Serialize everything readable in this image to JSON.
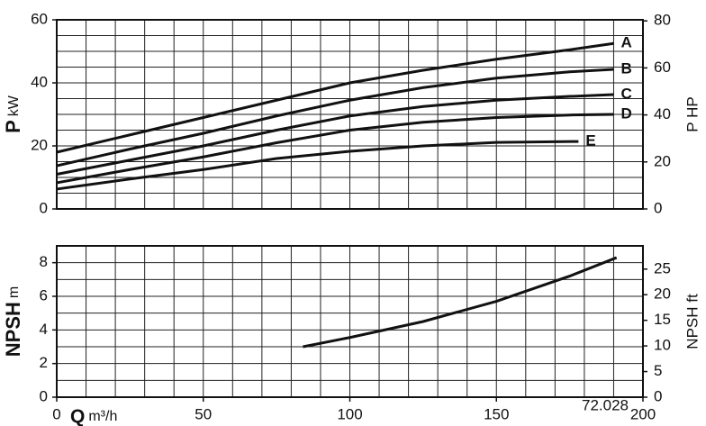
{
  "chart_data": [
    {
      "type": "line",
      "y_label": {
        "main": "P",
        "unit": "kW"
      },
      "y2_label": "P HP",
      "xlim": [
        0,
        200
      ],
      "xgrid": [
        0,
        10,
        20,
        30,
        40,
        50,
        60,
        70,
        80,
        90,
        100,
        110,
        120,
        130,
        140,
        150,
        160,
        170,
        180,
        190,
        200
      ],
      "ylim": [
        0,
        60
      ],
      "yticks": [
        0,
        20,
        40,
        60
      ],
      "ygrid": [
        0,
        5,
        10,
        15,
        20,
        25,
        30,
        35,
        40,
        45,
        50,
        55,
        60
      ],
      "y2lim": [
        0,
        80.46
      ],
      "y2ticks": [
        0,
        20,
        40,
        60,
        80
      ],
      "grid": true,
      "series": [
        {
          "name": "A",
          "color": "#111111",
          "x": [
            0,
            25,
            50,
            75,
            100,
            125,
            150,
            175,
            190
          ],
          "values": [
            18,
            23.5,
            29,
            34.5,
            40,
            44,
            47.5,
            50.5,
            52.5
          ]
        },
        {
          "name": "B",
          "color": "#111111",
          "x": [
            0,
            25,
            50,
            75,
            100,
            125,
            150,
            175,
            190
          ],
          "values": [
            13.7,
            19,
            24,
            29.5,
            34.5,
            38.5,
            41.5,
            43.5,
            44.3
          ]
        },
        {
          "name": "C",
          "color": "#111111",
          "x": [
            0,
            25,
            50,
            75,
            100,
            125,
            150,
            175,
            190
          ],
          "values": [
            11,
            15.5,
            20,
            25,
            29.5,
            32.5,
            34.5,
            35.7,
            36.3
          ]
        },
        {
          "name": "D",
          "color": "#111111",
          "x": [
            0,
            25,
            50,
            75,
            100,
            125,
            150,
            175,
            190
          ],
          "values": [
            8.3,
            12.5,
            16.5,
            21,
            25,
            27.5,
            29,
            29.8,
            30
          ]
        },
        {
          "name": "E",
          "color": "#111111",
          "x": [
            0,
            25,
            50,
            75,
            100,
            125,
            150,
            178
          ],
          "values": [
            6.3,
            9.5,
            12.5,
            16,
            18.3,
            20,
            21.1,
            21.4
          ]
        }
      ]
    },
    {
      "type": "line",
      "y_label": {
        "main": "NPSH",
        "unit": "m"
      },
      "y2_label": "NPSH ft",
      "x_label": {
        "main": "Q",
        "unit": "m³/h"
      },
      "annotation": "72.028",
      "xlim": [
        0,
        200
      ],
      "xticks": [
        0,
        50,
        100,
        150,
        200
      ],
      "xgrid": [
        0,
        10,
        20,
        30,
        40,
        50,
        60,
        70,
        80,
        90,
        100,
        110,
        120,
        130,
        140,
        150,
        160,
        170,
        180,
        190,
        200
      ],
      "ylim": [
        0,
        9
      ],
      "yticks": [
        0,
        2,
        4,
        6,
        8
      ],
      "ygrid": [
        0,
        1,
        2,
        3,
        4,
        5,
        6,
        7,
        8,
        9
      ],
      "y2lim": [
        0,
        29.53
      ],
      "y2ticks": [
        0,
        5,
        10,
        15,
        20,
        25
      ],
      "grid": true,
      "series": [
        {
          "name": "NPSH",
          "color": "#111111",
          "x": [
            84,
            100,
            125,
            150,
            175,
            191
          ],
          "values": [
            3.0,
            3.55,
            4.5,
            5.7,
            7.2,
            8.3
          ]
        }
      ]
    }
  ]
}
